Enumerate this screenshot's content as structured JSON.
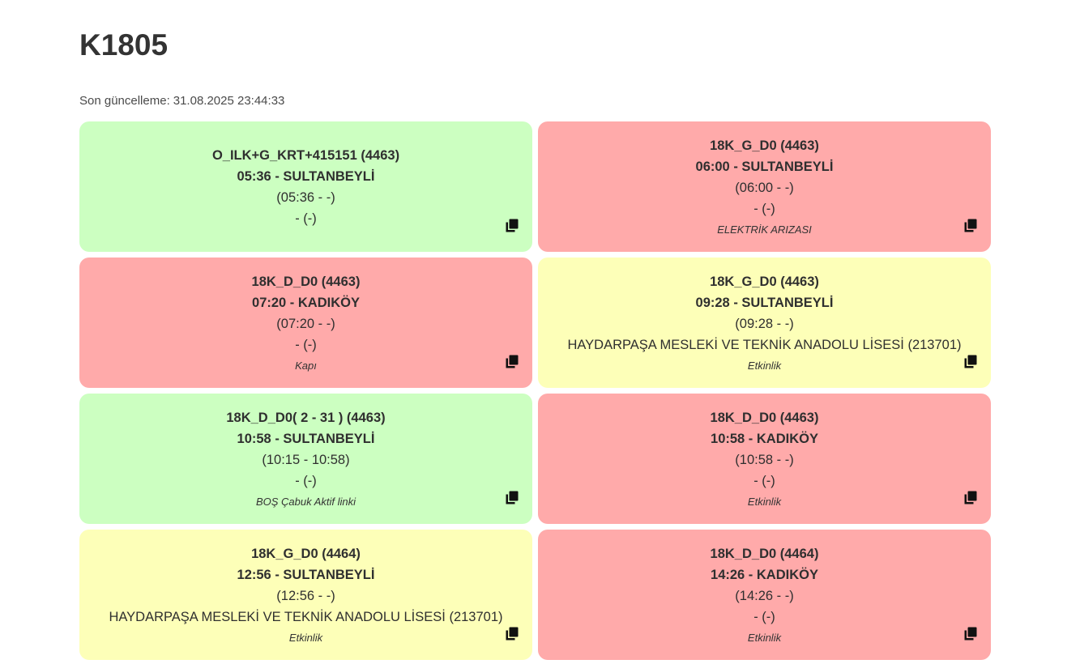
{
  "title": "K1805",
  "updated": {
    "label": "Son güncelleme:",
    "value": "31.08.2025 23:44:33"
  },
  "cards": [
    {
      "color": "green",
      "route": "O_ILK+G_KRT+415151 (4463)",
      "time_dest": "05:36 - SULTANBEYLİ",
      "range": "(05:36 - -)",
      "extra": "- (-)",
      "note": "",
      "icon": "copy-icon"
    },
    {
      "color": "red",
      "route": "18K_G_D0 (4463)",
      "time_dest": "06:00 - SULTANBEYLİ",
      "range": "(06:00 - -)",
      "extra": "- (-)",
      "note": "ELEKTRİK ARIZASI",
      "icon": "copy-icon"
    },
    {
      "color": "red",
      "route": "18K_D_D0 (4463)",
      "time_dest": "07:20 - KADIKÖY",
      "range": "(07:20 - -)",
      "extra": "- (-)",
      "note": "Kapı",
      "icon": "copy-icon"
    },
    {
      "color": "yellow",
      "route": "18K_G_D0 (4463)",
      "time_dest": "09:28 - SULTANBEYLİ",
      "range": "(09:28 - -)",
      "extra": "HAYDARPAŞA MESLEKİ VE TEKNİK ANADOLU LİSESİ (213701)",
      "note": "Etkinlik",
      "icon": "copy-icon"
    },
    {
      "color": "green",
      "route": "18K_D_D0( 2 - 31 ) (4463)",
      "time_dest": "10:58 - SULTANBEYLİ",
      "range": "(10:15 - 10:58)",
      "extra": "- (-)",
      "note": "BOŞ Çabuk Aktif linki",
      "icon": "copy-icon"
    },
    {
      "color": "red",
      "route": "18K_D_D0 (4463)",
      "time_dest": "10:58 - KADIKÖY",
      "range": "(10:58 - -)",
      "extra": "- (-)",
      "note": "Etkinlik",
      "icon": "copy-icon"
    },
    {
      "color": "yellow",
      "route": "18K_G_D0 (4464)",
      "time_dest": "12:56 - SULTANBEYLİ",
      "range": "(12:56 - -)",
      "extra": "HAYDARPAŞA MESLEKİ VE TEKNİK ANADOLU LİSESİ (213701)",
      "note": "Etkinlik",
      "icon": "copy-icon"
    },
    {
      "color": "red",
      "route": "18K_D_D0 (4464)",
      "time_dest": "14:26 - KADIKÖY",
      "range": "(14:26 - -)",
      "extra": "- (-)",
      "note": "Etkinlik",
      "icon": "copy-icon"
    }
  ],
  "colors": {
    "green": "#ccffc1",
    "red": "#ffaaaa",
    "yellow": "#fdffb8"
  }
}
